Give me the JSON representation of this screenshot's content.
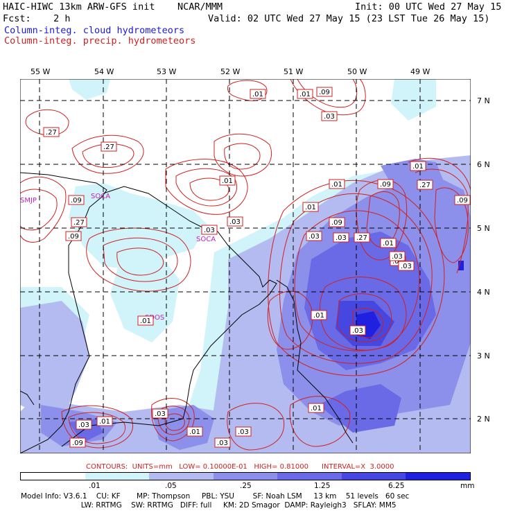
{
  "header": {
    "title_left": "HAIC-HIWC 13km ARW-GFS init",
    "title_mid": "NCAR/MMM",
    "init": "Init: 00 UTC Wed 27 May 15",
    "fcst": "Fcst:    2 h",
    "valid": "Valid: 02 UTC Wed 27 May 15 (23 LST Tue 26 May 15)",
    "legend_blue": "Column-integ. cloud hydrometeors",
    "legend_red": "Column-integ. precip. hydrometeors"
  },
  "axes": {
    "lon_labels": [
      "55 W",
      "54 W",
      "53 W",
      "52 W",
      "51 W",
      "50 W",
      "49 W"
    ],
    "lat_labels": [
      "7 N",
      "6 N",
      "5 N",
      "4 N",
      "3 N",
      "2 N"
    ]
  },
  "stations": [
    "SMJP",
    "SOCA",
    "SOCA",
    "SDOS"
  ],
  "contour_labels": [
    ".01",
    ".01",
    ".09",
    ".03",
    ".27",
    ".27",
    ".01",
    ".03",
    ".09",
    ".27",
    ".09",
    ".03",
    ".01",
    ".09",
    ".03",
    ".01",
    ".09",
    ".03",
    ".27",
    ".01",
    ".03",
    ".03",
    ".27",
    ".09",
    ".03",
    ".01",
    ".01",
    ".01",
    ".03",
    ".01",
    ".03",
    ".01",
    ".09",
    ".03",
    ".03",
    ".01",
    ".03"
  ],
  "contours_info": "CONTOURS:  UNITS=mm   LOW= 0.10000E-01   HIGH= 0.81000      INTERVAL=X  3.0000",
  "colorbar": {
    "ticks": [
      ".01",
      ".05",
      ".25",
      "1.25",
      "6.25"
    ],
    "unit": "mm",
    "colors": [
      "#ffffff",
      "#d0f4fa",
      "#b3bbf0",
      "#8c90ea",
      "#6a6ae6",
      "#4646e0",
      "#2020e0"
    ]
  },
  "model_info": {
    "line1": "Model Info: V3.6.1    CU: KF       MP: Thompson     PBL: YSU        SF: Noah LSM     13 km    51 levels   60 sec",
    "line2": "                          LW: RRTMG    SW: RRTMG   DIFF: full     KM: 2D Smagor  DAMP: Rayleigh3   SFLAY: MM5"
  }
}
